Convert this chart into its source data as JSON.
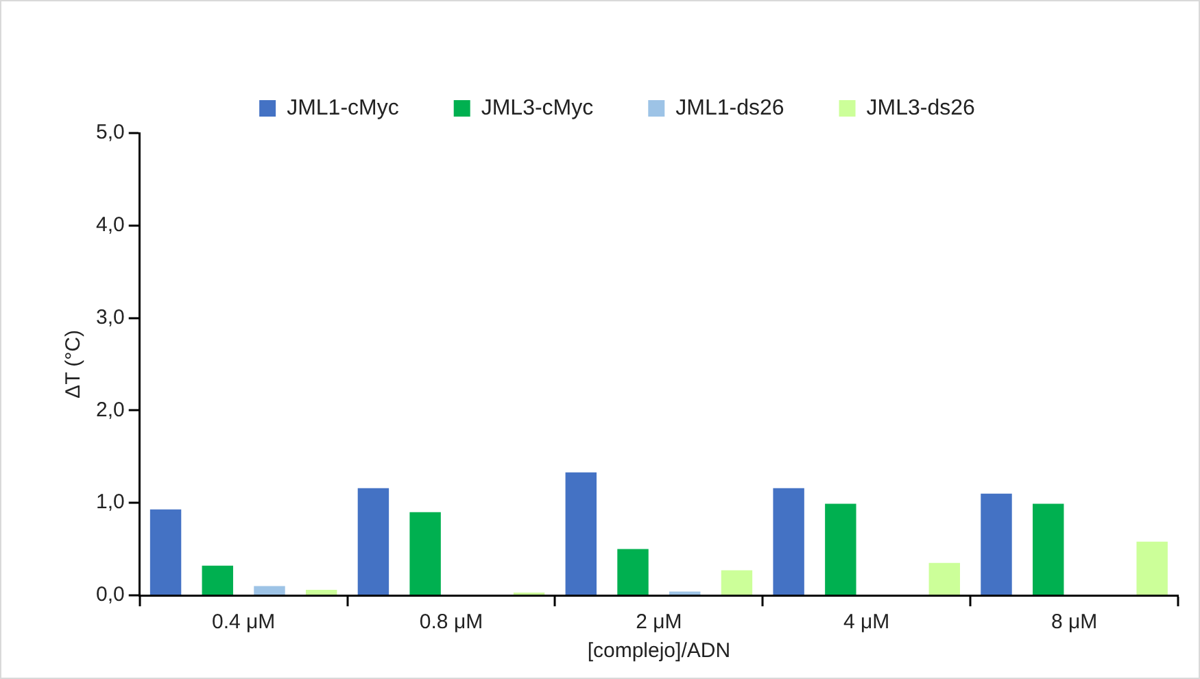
{
  "chart_data": {
    "type": "bar",
    "xlabel": "[complejo]/ADN",
    "ylabel": "ΔT (°C)",
    "categories": [
      "0.4 μM",
      "0.8 μM",
      "2 μM",
      "4 μM",
      "8 μM"
    ],
    "series": [
      {
        "name": "JML1-cMyc",
        "color": "#4472c4",
        "values": [
          0.93,
          1.16,
          1.33,
          1.16,
          1.1
        ]
      },
      {
        "name": "JML3-cMyc",
        "color": "#00b050",
        "values": [
          0.32,
          0.9,
          0.5,
          0.99,
          0.99
        ]
      },
      {
        "name": "JML1-ds26",
        "color": "#9dc3e6",
        "values": [
          0.1,
          0,
          0.04,
          0,
          0
        ]
      },
      {
        "name": "JML3-ds26",
        "color": "#ccff99",
        "values": [
          0.06,
          0.03,
          0.27,
          0.35,
          0.58
        ]
      }
    ],
    "ylim": [
      0,
      5
    ],
    "yticks": [
      {
        "value": 0,
        "label": "0,0"
      },
      {
        "value": 1,
        "label": "1,0"
      },
      {
        "value": 2,
        "label": "2,0"
      },
      {
        "value": 3,
        "label": "3,0"
      },
      {
        "value": 4,
        "label": "4,0"
      },
      {
        "value": 5,
        "label": "5,0"
      }
    ],
    "grid": false,
    "legend": "top"
  }
}
